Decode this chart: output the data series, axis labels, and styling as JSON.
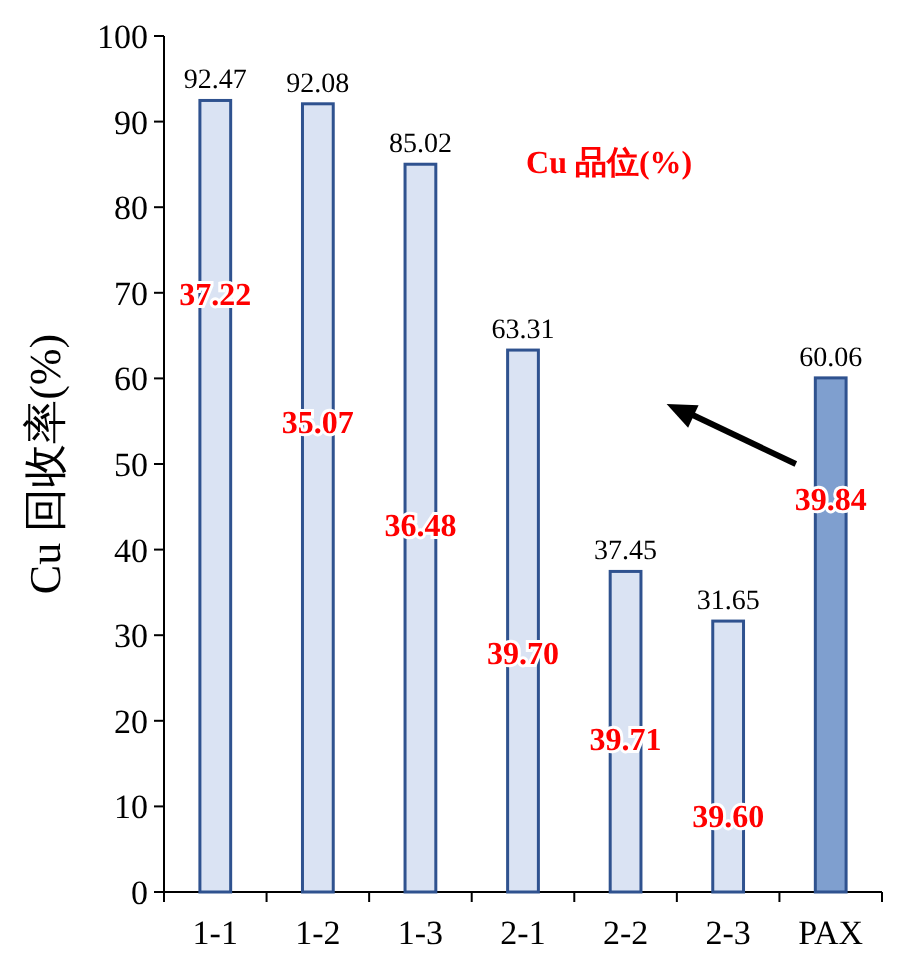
{
  "chart_data": {
    "type": "bar",
    "ylabel": "Cu 回收率(%)",
    "categories": [
      "1-1",
      "1-2",
      "1-3",
      "2-1",
      "2-2",
      "2-3",
      "PAX"
    ],
    "values": [
      92.47,
      92.08,
      85.02,
      63.31,
      37.45,
      31.65,
      60.06
    ],
    "colors": [
      "#dae3f3",
      "#dae3f3",
      "#dae3f3",
      "#dae3f3",
      "#dae3f3",
      "#dae3f3",
      "#7f9fcf"
    ],
    "ylim": [
      0,
      100
    ],
    "yticks": [
      0,
      10,
      20,
      30,
      40,
      50,
      60,
      70,
      80,
      90,
      100
    ],
    "data_labels": true,
    "annotations": [
      "Cu 品位(%)",
      "37.22",
      "35.07",
      "36.48",
      "39.70",
      "39.71",
      "39.60",
      "39.84"
    ]
  }
}
